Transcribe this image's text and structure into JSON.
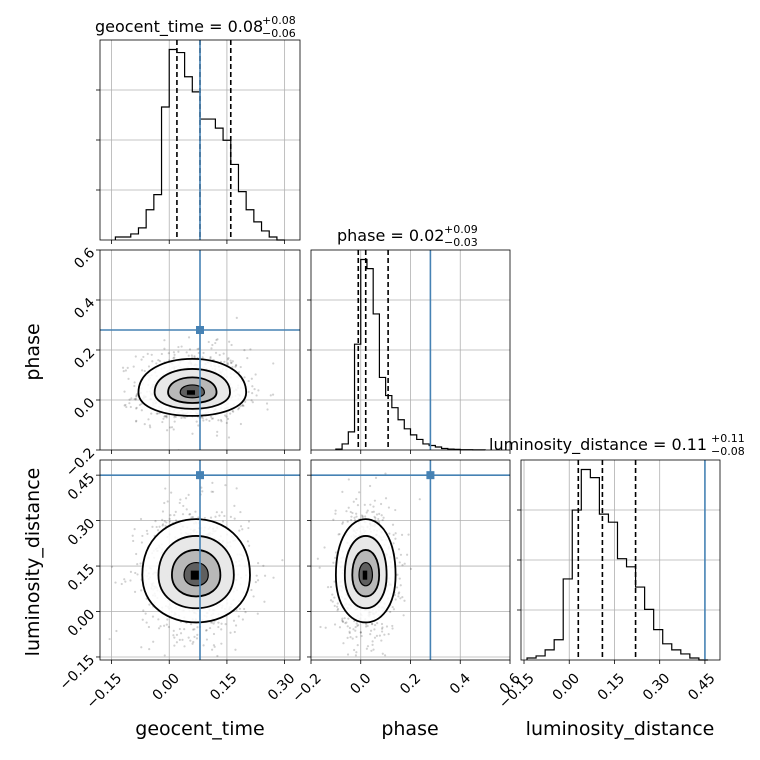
{
  "chart_data": {
    "type": "corner",
    "parameters": [
      "geocent_time",
      "phase",
      "luminosity_distance"
    ],
    "truths": {
      "geocent_time": 0.08,
      "phase": 0.28,
      "luminosity_distance": 0.45
    },
    "truth_color": "#4682b4",
    "ranges": {
      "geocent_time": [
        -0.18,
        0.34
      ],
      "phase": [
        -0.2,
        0.6
      ],
      "luminosity_distance": [
        -0.16,
        0.5
      ]
    },
    "ticks": {
      "geocent_time": {
        "values": [
          -0.15,
          0.0,
          0.15,
          0.3
        ],
        "labels": [
          "−0.15",
          "0.00",
          "0.15",
          "0.30"
        ]
      },
      "phase": {
        "values": [
          -0.2,
          0.0,
          0.2,
          0.4,
          0.6
        ],
        "labels": [
          "−0.2",
          "0.0",
          "0.2",
          "0.4",
          "0.6"
        ]
      },
      "luminosity_distance": {
        "values": [
          -0.15,
          0.0,
          0.15,
          0.3,
          0.45
        ],
        "labels": [
          "−0.15",
          "0.00",
          "0.15",
          "0.30",
          "0.45"
        ]
      }
    },
    "titles": {
      "geocent_time": {
        "name": "geocent_time",
        "median": "0.08",
        "plus": "+0.08",
        "minus": "−0.06"
      },
      "phase": {
        "name": "phase",
        "median": "0.02",
        "plus": "+0.09",
        "minus": "−0.03"
      },
      "luminosity_distance": {
        "name": "luminosity_distance",
        "median": "0.11",
        "plus": "+0.11",
        "minus": "−0.08"
      }
    },
    "histograms": {
      "geocent_time": {
        "bin_edges": [
          -0.14,
          -0.12,
          -0.1,
          -0.08,
          -0.06,
          -0.04,
          -0.02,
          0.0,
          0.02,
          0.04,
          0.06,
          0.08,
          0.1,
          0.12,
          0.14,
          0.16,
          0.18,
          0.2,
          0.22,
          0.24,
          0.26,
          0.28,
          0.3
        ],
        "counts": [
          1,
          1,
          2,
          4,
          10,
          15,
          44,
          63,
          62,
          54,
          49,
          40,
          40,
          37,
          33,
          25,
          16,
          10,
          6,
          3,
          1,
          0
        ],
        "quantiles": [
          0.02,
          0.08,
          0.16
        ]
      },
      "phase": {
        "bin_edges": [
          -0.1,
          -0.075,
          -0.05,
          -0.025,
          0.0,
          0.025,
          0.05,
          0.075,
          0.1,
          0.125,
          0.15,
          0.175,
          0.2,
          0.225,
          0.25,
          0.275,
          0.3,
          0.325,
          0.35,
          0.375,
          0.4,
          0.45,
          0.5
        ],
        "counts": [
          0.3,
          2,
          6,
          35,
          63,
          60,
          45,
          24,
          18,
          14,
          10,
          7,
          5,
          3.5,
          2,
          1.5,
          1,
          0.5,
          0.3,
          0.2,
          0.1,
          0.05
        ],
        "quantiles": [
          -0.01,
          0.02,
          0.11
        ]
      },
      "luminosity_distance": {
        "bin_edges": [
          -0.14,
          -0.11,
          -0.08,
          -0.05,
          -0.02,
          0.01,
          0.04,
          0.07,
          0.1,
          0.13,
          0.16,
          0.19,
          0.22,
          0.25,
          0.28,
          0.31,
          0.34,
          0.37,
          0.4,
          0.43,
          0.46
        ],
        "counts": [
          1,
          2,
          5,
          10,
          40,
          74,
          94,
          90,
          72,
          68,
          50,
          46,
          36,
          25,
          15,
          8,
          5,
          3,
          1,
          0
        ],
        "quantiles": [
          0.03,
          0.11,
          0.22
        ]
      }
    },
    "scatter_2d": {
      "phase_vs_geocent_time": {
        "x": "geocent_time",
        "y": "phase",
        "center": [
          0.06,
          0.03
        ],
        "spread": [
          0.07,
          0.06
        ],
        "skew_y": 0.9
      },
      "luminosity_distance_vs_geocent_time": {
        "x": "geocent_time",
        "y": "luminosity_distance",
        "center": [
          0.07,
          0.12
        ],
        "spread": [
          0.07,
          0.1
        ],
        "skew_y": 0.3
      },
      "luminosity_distance_vs_phase": {
        "x": "phase",
        "y": "luminosity_distance",
        "center": [
          0.02,
          0.12
        ],
        "spread": [
          0.06,
          0.1
        ],
        "skew_y": 0.3
      }
    }
  }
}
